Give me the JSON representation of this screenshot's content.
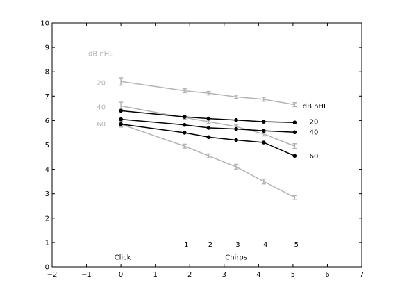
{
  "chart_data": {
    "type": "line",
    "xlim": [
      -2,
      7
    ],
    "ylim": [
      0,
      10
    ],
    "x_ticks": [
      "−2",
      "−1",
      "0",
      "1",
      "2",
      "3",
      "4",
      "5",
      "6",
      "7"
    ],
    "y_ticks": [
      "0",
      "1",
      "2",
      "3",
      "4",
      "5",
      "6",
      "7",
      "8",
      "9",
      "10"
    ],
    "x_tick_values": [
      -2,
      -1,
      0,
      1,
      2,
      3,
      4,
      5,
      6,
      7
    ],
    "y_tick_values": [
      0,
      1,
      2,
      3,
      4,
      5,
      6,
      7,
      8,
      9,
      10
    ],
    "grid": false,
    "colors": {
      "gray": "#b3b3b3",
      "black": "#000000"
    },
    "series": [
      {
        "name": "20",
        "group": "gray",
        "errorbars": true,
        "x": [
          0,
          1.85,
          2.55,
          3.35,
          4.15,
          5.05
        ],
        "y": [
          7.6,
          7.22,
          7.12,
          6.97,
          6.87,
          6.65
        ],
        "err": [
          0.15,
          0.08,
          0.07,
          0.07,
          0.08,
          0.08
        ]
      },
      {
        "name": "40",
        "group": "gray",
        "errorbars": true,
        "x": [
          0,
          1.85,
          2.55,
          3.35,
          4.15,
          5.05
        ],
        "y": [
          6.6,
          6.12,
          5.95,
          5.75,
          5.45,
          4.95
        ],
        "err": [
          0.15,
          0.07,
          0.07,
          0.07,
          0.08,
          0.1
        ]
      },
      {
        "name": "60",
        "group": "gray",
        "errorbars": true,
        "x": [
          0,
          1.85,
          2.55,
          3.35,
          4.15,
          5.05
        ],
        "y": [
          5.85,
          4.95,
          4.55,
          4.1,
          3.5,
          2.85
        ],
        "err": [
          0.12,
          0.08,
          0.08,
          0.1,
          0.1,
          0.08
        ]
      },
      {
        "name": "20",
        "group": "black",
        "errorbars": false,
        "x": [
          0,
          1.85,
          2.55,
          3.35,
          4.15,
          5.05
        ],
        "y": [
          6.4,
          6.15,
          6.08,
          6.02,
          5.95,
          5.92
        ]
      },
      {
        "name": "40",
        "group": "black",
        "errorbars": false,
        "x": [
          0,
          1.85,
          2.55,
          3.35,
          4.15,
          5.05
        ],
        "y": [
          6.05,
          5.82,
          5.7,
          5.65,
          5.58,
          5.52
        ]
      },
      {
        "name": "60",
        "group": "black",
        "errorbars": false,
        "x": [
          0,
          1.85,
          2.55,
          3.35,
          4.15,
          5.05
        ],
        "y": [
          5.85,
          5.5,
          5.32,
          5.2,
          5.1,
          4.55
        ]
      }
    ],
    "annotations": [
      {
        "text": "dB nHL",
        "x": -0.95,
        "y": 8.75,
        "color": "gray",
        "anchor": "start"
      },
      {
        "text": "20",
        "x": -0.7,
        "y": 7.55,
        "color": "gray",
        "anchor": "start"
      },
      {
        "text": "40",
        "x": -0.7,
        "y": 6.55,
        "color": "gray",
        "anchor": "start"
      },
      {
        "text": "60",
        "x": -0.7,
        "y": 5.85,
        "color": "gray",
        "anchor": "start"
      },
      {
        "text": "dB nHL",
        "x": 5.28,
        "y": 6.6,
        "color": "black",
        "anchor": "start"
      },
      {
        "text": "20",
        "x": 5.48,
        "y": 5.95,
        "color": "black",
        "anchor": "start"
      },
      {
        "text": "40",
        "x": 5.48,
        "y": 5.52,
        "color": "black",
        "anchor": "start"
      },
      {
        "text": "60",
        "x": 5.48,
        "y": 4.55,
        "color": "black",
        "anchor": "start"
      },
      {
        "text": "Click",
        "x": 0.05,
        "y": 0.4,
        "color": "black",
        "anchor": "middle"
      },
      {
        "text": "Chirps",
        "x": 3.35,
        "y": 0.4,
        "color": "black",
        "anchor": "middle"
      },
      {
        "text": "1",
        "x": 1.9,
        "y": 0.92,
        "color": "black",
        "anchor": "middle"
      },
      {
        "text": "2",
        "x": 2.6,
        "y": 0.92,
        "color": "black",
        "anchor": "middle"
      },
      {
        "text": "3",
        "x": 3.4,
        "y": 0.92,
        "color": "black",
        "anchor": "middle"
      },
      {
        "text": "4",
        "x": 4.2,
        "y": 0.92,
        "color": "black",
        "anchor": "middle"
      },
      {
        "text": "5",
        "x": 5.1,
        "y": 0.92,
        "color": "black",
        "anchor": "middle"
      }
    ]
  }
}
